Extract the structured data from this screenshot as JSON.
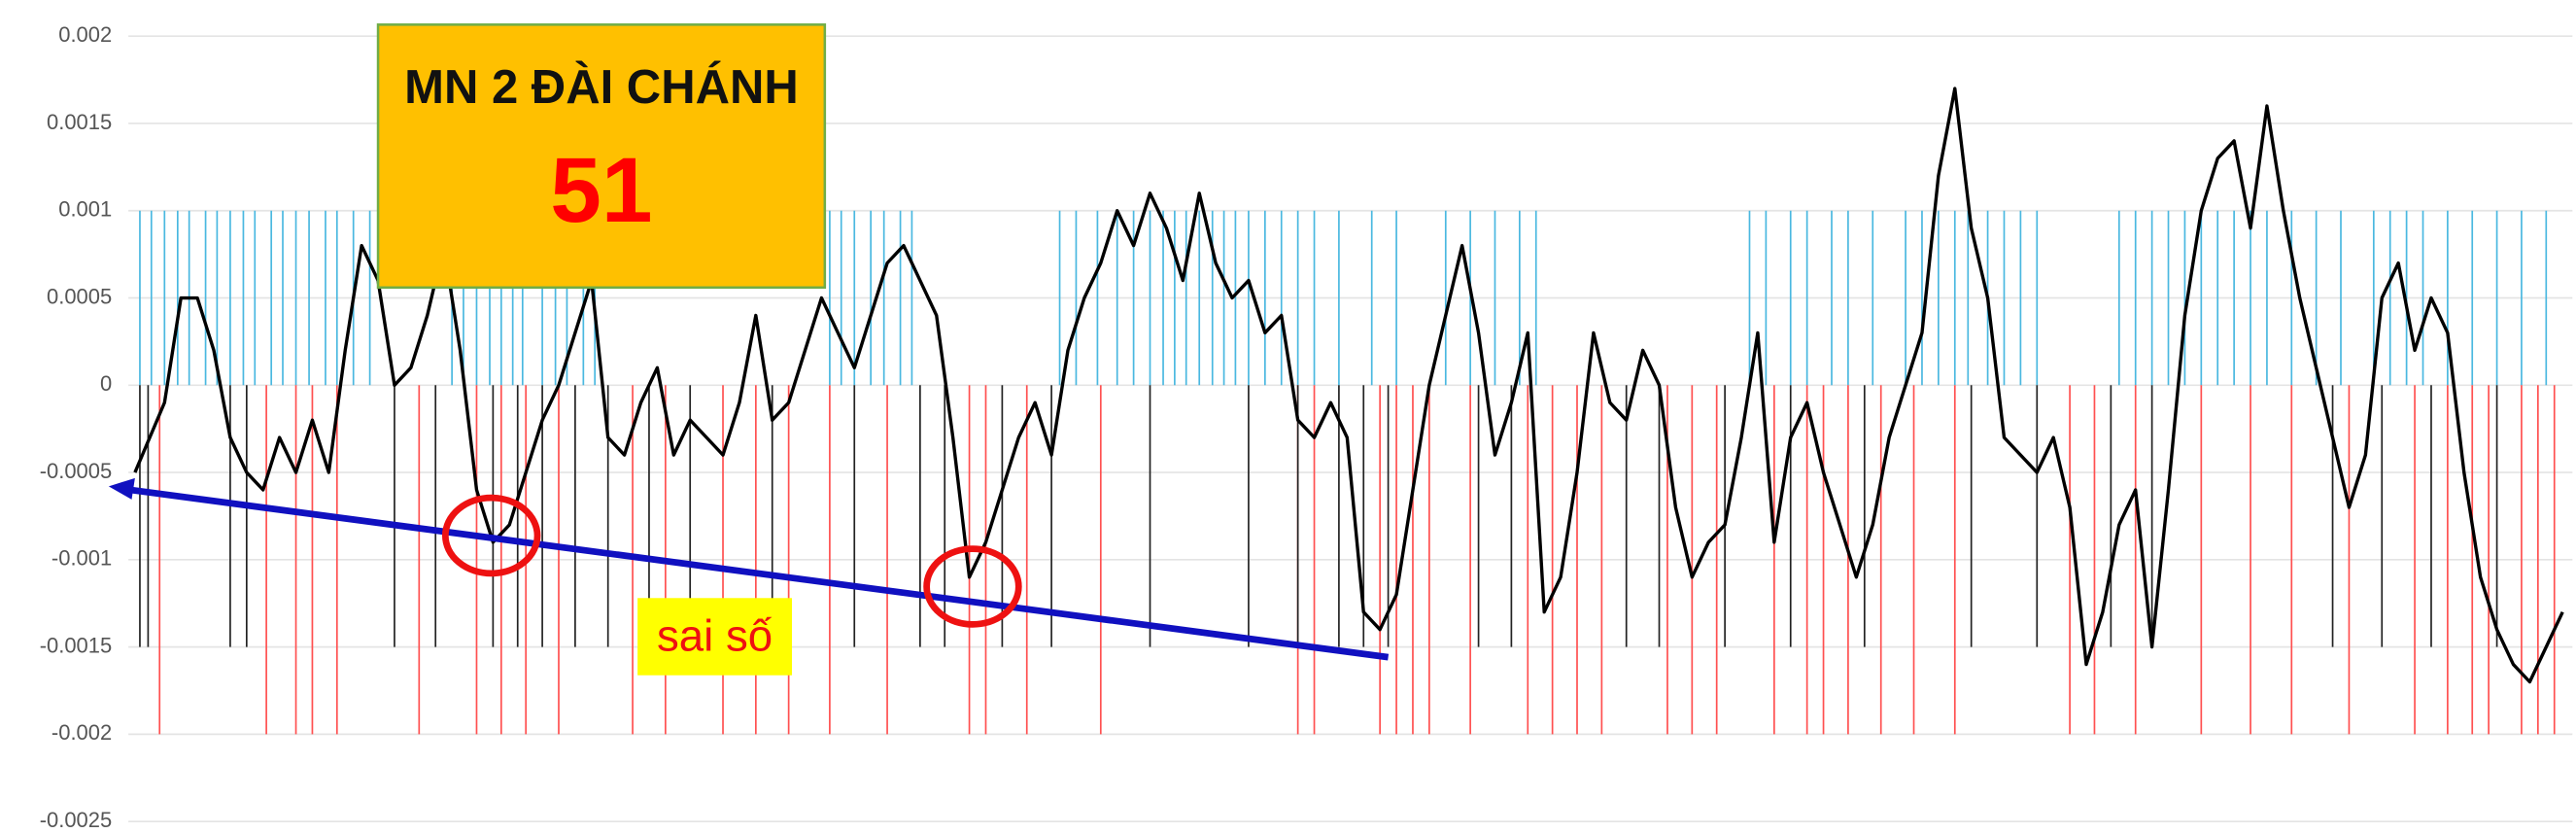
{
  "chart_data": {
    "type": "line",
    "ylim": [
      -0.0025,
      0.002
    ],
    "yticks": [
      0.002,
      0.0015,
      0.001,
      0.0005,
      0,
      -0.0005,
      -0.001,
      -0.0015,
      -0.002,
      -0.0025
    ],
    "xlim": [
      82,
      1560
    ],
    "grid": true,
    "annotations": {
      "title": "MN 2 ĐÀI CHÁNH",
      "number": "51",
      "note": "sai số"
    },
    "series": [
      {
        "type": "line",
        "color": "#000000",
        "x": [
          82,
          100,
          110,
          120,
          130,
          140,
          150,
          160,
          170,
          180,
          190,
          200,
          210,
          220,
          230,
          240,
          250,
          260,
          270,
          280,
          290,
          300,
          310,
          320,
          330,
          340,
          350,
          360,
          370,
          380,
          390,
          400,
          410,
          420,
          430,
          440,
          450,
          460,
          470,
          480,
          490,
          500,
          510,
          520,
          530,
          540,
          550,
          560,
          570,
          580,
          590,
          600,
          610,
          620,
          630,
          640,
          650,
          660,
          670,
          680,
          690,
          700,
          710,
          720,
          730,
          740,
          750,
          760,
          770,
          780,
          790,
          800,
          810,
          820,
          830,
          840,
          850,
          860,
          870,
          880,
          890,
          900,
          910,
          920,
          930,
          940,
          950,
          960,
          970,
          980,
          990,
          1000,
          1010,
          1020,
          1030,
          1040,
          1050,
          1060,
          1070,
          1080,
          1090,
          1100,
          1110,
          1120,
          1130,
          1140,
          1150,
          1160,
          1170,
          1180,
          1190,
          1200,
          1210,
          1220,
          1230,
          1240,
          1250,
          1260,
          1270,
          1280,
          1290,
          1300,
          1310,
          1320,
          1330,
          1340,
          1350,
          1360,
          1370,
          1380,
          1390,
          1400,
          1410,
          1420,
          1430,
          1440,
          1450,
          1460,
          1470,
          1480,
          1490,
          1500,
          1510,
          1520,
          1530,
          1540,
          1550,
          1560
        ],
        "values": [
          -0.0005,
          -0.0001,
          0.0005,
          0.0005,
          0.0002,
          -0.0003,
          -0.0005,
          -0.0006,
          -0.0003,
          -0.0005,
          -0.0002,
          -0.0005,
          0.0002,
          0.0008,
          0.0006,
          0,
          0.0001,
          0.0004,
          0.0008,
          0.0002,
          -0.0006,
          -0.0009,
          -0.0008,
          -0.0005,
          -0.0002,
          0,
          0.0003,
          0.0006,
          -0.0003,
          -0.0004,
          -0.0001,
          0.0001,
          -0.0004,
          -0.0002,
          -0.0003,
          -0.0004,
          -0.0001,
          0.0004,
          -0.0002,
          -0.0001,
          0.0002,
          0.0005,
          0.0003,
          0.0001,
          0.0004,
          0.0007,
          0.0008,
          0.0006,
          0.0004,
          -0.0003,
          -0.0011,
          -0.0009,
          -0.0006,
          -0.0003,
          -0.0001,
          -0.0004,
          0.0002,
          0.0005,
          0.0007,
          0.001,
          0.0008,
          0.0011,
          0.0009,
          0.0006,
          0.0011,
          0.0007,
          0.0005,
          0.0006,
          0.0003,
          0.0004,
          -0.0002,
          -0.0003,
          -0.0001,
          -0.0003,
          -0.0013,
          -0.0014,
          -0.0012,
          -0.0006,
          0,
          0.0004,
          0.0008,
          0.0003,
          -0.0004,
          -0.0001,
          0.0003,
          -0.0013,
          -0.0011,
          -0.0005,
          0.0003,
          -0.0001,
          -0.0002,
          0.0002,
          0,
          -0.0007,
          -0.0011,
          -0.0009,
          -0.0008,
          -0.0003,
          0.0003,
          -0.0009,
          -0.0003,
          -0.0001,
          -0.0005,
          -0.0008,
          -0.0011,
          -0.0008,
          -0.0003,
          0,
          0.0003,
          0.0012,
          0.0017,
          0.0009,
          0.0005,
          -0.0003,
          -0.0004,
          -0.0005,
          -0.0003,
          -0.0007,
          -0.0016,
          -0.0013,
          -0.0008,
          -0.0006,
          -0.0015,
          -0.0006,
          0.0004,
          0.001,
          0.0013,
          0.0014,
          0.0009,
          0.0016,
          0.001,
          0.0005,
          0.0001,
          -0.0003,
          -0.0007,
          -0.0004,
          0.0005,
          0.0007,
          0.0002,
          0.0005,
          0.0003,
          -0.0005,
          -0.0011,
          -0.0014,
          -0.0016,
          -0.0017,
          -0.0015,
          -0.0013
        ]
      },
      {
        "type": "bar",
        "color": "#4ab8e0",
        "value": 0.001,
        "x": [
          85,
          92,
          100,
          108,
          115,
          125,
          132,
          140,
          148,
          155,
          165,
          172,
          180,
          188,
          198,
          205,
          215,
          225,
          275,
          282,
          290,
          298,
          305,
          312,
          318,
          330,
          338,
          345,
          355,
          362,
          505,
          512,
          520,
          530,
          538,
          548,
          555,
          645,
          655,
          668,
          680,
          690,
          700,
          708,
          715,
          722,
          730,
          738,
          745,
          752,
          760,
          770,
          780,
          790,
          800,
          815,
          835,
          850,
          880,
          895,
          910,
          925,
          935,
          1065,
          1075,
          1090,
          1100,
          1115,
          1125,
          1140,
          1160,
          1170,
          1180,
          1190,
          1198,
          1210,
          1220,
          1230,
          1240,
          1290,
          1300,
          1310,
          1320,
          1330,
          1340,
          1350,
          1360,
          1370,
          1380,
          1395,
          1410,
          1425,
          1445,
          1455,
          1465,
          1475,
          1490,
          1505,
          1520,
          1535,
          1550
        ]
      },
      {
        "type": "bar",
        "color": "#ff5050",
        "value": -0.002,
        "x": [
          97,
          162,
          180,
          190,
          205,
          255,
          290,
          305,
          320,
          340,
          385,
          405,
          440,
          460,
          480,
          505,
          540,
          590,
          600,
          625,
          670,
          790,
          800,
          840,
          850,
          860,
          870,
          895,
          930,
          945,
          960,
          975,
          1015,
          1030,
          1045,
          1080,
          1100,
          1110,
          1125,
          1145,
          1165,
          1190,
          1260,
          1275,
          1300,
          1340,
          1370,
          1395,
          1430,
          1470,
          1490,
          1505,
          1515,
          1535,
          1545,
          1555
        ]
      },
      {
        "type": "bar",
        "color": "#222222",
        "value": -0.0015,
        "x": [
          85,
          90,
          140,
          150,
          240,
          265,
          300,
          315,
          330,
          350,
          370,
          395,
          420,
          470,
          520,
          560,
          575,
          610,
          640,
          700,
          760,
          790,
          815,
          830,
          845,
          900,
          920,
          990,
          1010,
          1050,
          1090,
          1135,
          1200,
          1240,
          1285,
          1310,
          1420,
          1450,
          1480,
          1520
        ]
      }
    ]
  }
}
